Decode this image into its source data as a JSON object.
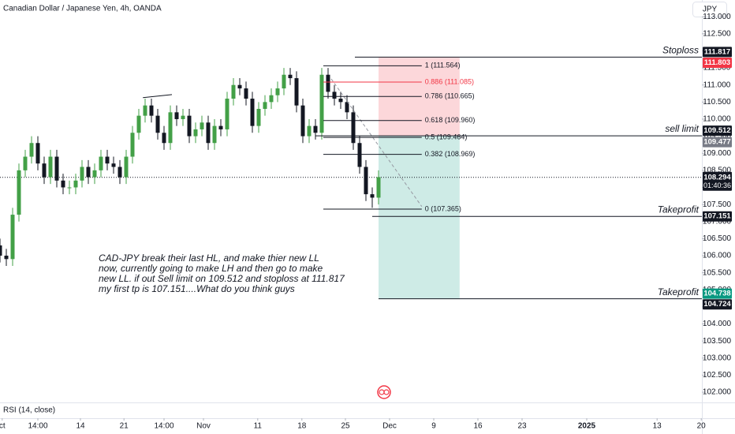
{
  "header": {
    "symbol": "Canadian Dollar / Japanese Yen, 4h, OANDA",
    "currency": "JPY"
  },
  "chart_data": {
    "type": "candlestick",
    "x": [
      0.25,
      1.25,
      2.25,
      3.25,
      4.25,
      5.25,
      6.25,
      7.25,
      8.25,
      9.25,
      10.25,
      11.25,
      12.25,
      13.25,
      14.25,
      15.25,
      16.25,
      17.25,
      18.25,
      19.25,
      20.25,
      21.25,
      22.25,
      23.25,
      24.25,
      25.25,
      26.25,
      27.25,
      28.25,
      29.25,
      30.25,
      31.25,
      32.25,
      33.25,
      34.25,
      35.25,
      36.25,
      37.25,
      38.25,
      39.25,
      40.25,
      41.25,
      42.25,
      43.25,
      44.25,
      45.25,
      46.25,
      47.25,
      48.25,
      49.25,
      50.25,
      51.25,
      52.25,
      53.25,
      54.25,
      55.25,
      56.25,
      57.25,
      58.25,
      59.25,
      60.25
    ],
    "open": [
      106.3,
      106.0,
      105.9,
      107.2,
      108.5,
      108.9,
      109.3,
      108.7,
      108.3,
      108.9,
      108.2,
      108.0,
      108.0,
      108.2,
      108.6,
      108.3,
      108.5,
      108.9,
      108.7,
      108.6,
      108.3,
      108.9,
      109.6,
      110.1,
      110.4,
      110.1,
      109.6,
      109.3,
      110.2,
      110.0,
      110.1,
      109.5,
      109.7,
      109.9,
      109.3,
      109.8,
      109.7,
      110.6,
      111.0,
      110.9,
      110.6,
      109.8,
      110.3,
      110.5,
      110.7,
      110.9,
      111.3,
      111.2,
      110.4,
      109.5,
      109.8,
      109.6,
      111.3,
      110.8,
      110.6,
      110.5,
      110.2,
      109.3,
      108.6,
      107.8,
      107.7
    ],
    "high": [
      106.5,
      106.2,
      107.4,
      108.7,
      109.1,
      109.5,
      109.5,
      108.9,
      109.1,
      109.1,
      108.4,
      108.2,
      108.4,
      108.8,
      108.8,
      108.7,
      109.1,
      109.1,
      108.9,
      108.8,
      109.1,
      109.8,
      110.3,
      110.6,
      110.6,
      110.3,
      109.8,
      110.4,
      110.4,
      110.3,
      110.3,
      109.9,
      110.1,
      110.1,
      110.0,
      110.0,
      110.8,
      111.2,
      111.2,
      111.1,
      110.8,
      110.5,
      110.7,
      110.9,
      111.1,
      111.5,
      111.5,
      111.4,
      110.6,
      110.0,
      110.0,
      111.5,
      111.5,
      111.0,
      110.8,
      110.7,
      110.4,
      109.5,
      108.8,
      108.0,
      108.5
    ],
    "low": [
      105.8,
      105.7,
      105.7,
      107.0,
      108.3,
      108.7,
      108.5,
      108.1,
      108.1,
      108.0,
      107.8,
      107.8,
      107.8,
      108.0,
      108.1,
      108.1,
      108.3,
      108.5,
      108.4,
      108.1,
      108.1,
      108.7,
      109.4,
      109.9,
      109.9,
      109.4,
      109.1,
      109.1,
      109.8,
      109.8,
      109.3,
      109.3,
      109.5,
      109.1,
      109.1,
      109.5,
      109.5,
      110.4,
      110.7,
      110.4,
      109.6,
      109.6,
      110.1,
      110.3,
      110.5,
      110.7,
      111.0,
      110.2,
      109.3,
      109.3,
      109.4,
      109.4,
      110.6,
      110.4,
      110.3,
      110.0,
      109.1,
      108.4,
      107.6,
      107.4,
      107.5
    ],
    "close": [
      106.0,
      105.9,
      107.2,
      108.5,
      108.9,
      109.3,
      108.7,
      108.3,
      108.9,
      108.2,
      108.0,
      108.0,
      108.2,
      108.6,
      108.3,
      108.5,
      108.9,
      108.7,
      108.6,
      108.3,
      108.9,
      109.6,
      110.1,
      110.4,
      110.1,
      109.6,
      109.3,
      110.2,
      110.0,
      110.1,
      109.5,
      109.7,
      109.9,
      109.3,
      109.8,
      109.7,
      110.6,
      111.0,
      110.9,
      110.6,
      109.8,
      110.3,
      110.5,
      110.7,
      110.9,
      111.3,
      111.2,
      110.4,
      109.5,
      109.8,
      109.6,
      111.3,
      110.8,
      110.6,
      110.5,
      110.2,
      109.3,
      108.6,
      107.8,
      107.7,
      108.3
    ],
    "up_color": "#43a047",
    "down_color": "#131722",
    "xlim": [
      0.25,
      111.5
    ],
    "xticks": [
      {
        "value": 0.6,
        "label": "ct"
      },
      {
        "value": 6.25,
        "label": "14:00"
      },
      {
        "value": 13,
        "label": "14"
      },
      {
        "value": 19.9,
        "label": "21"
      },
      {
        "value": 26.25,
        "label": "14:00"
      },
      {
        "value": 32.5,
        "label": "Nov"
      },
      {
        "value": 41.1,
        "label": "11"
      },
      {
        "value": 48.1,
        "label": "18"
      },
      {
        "value": 55,
        "label": "25"
      },
      {
        "value": 62,
        "label": "Dec"
      },
      {
        "value": 69,
        "label": "9"
      },
      {
        "value": 76,
        "label": "16"
      },
      {
        "value": 83,
        "label": "23"
      },
      {
        "value": 93.25,
        "label": "2025"
      },
      {
        "value": 104.4,
        "label": "13"
      },
      {
        "value": 111.4,
        "label": "20"
      }
    ],
    "ylim": [
      101.7,
      113.49
    ],
    "yticks": [
      {
        "value": 102,
        "label": "102.000"
      },
      {
        "value": 102.5,
        "label": "102.500"
      },
      {
        "value": 103,
        "label": "103.000"
      },
      {
        "value": 103.5,
        "label": "103.500"
      },
      {
        "value": 104,
        "label": "104.000"
      },
      {
        "value": 104.5,
        "label": "104.500"
      },
      {
        "value": 105,
        "label": "105.000"
      },
      {
        "value": 105.5,
        "label": "105.500"
      },
      {
        "value": 106,
        "label": "106.000"
      },
      {
        "value": 106.5,
        "label": "106.500"
      },
      {
        "value": 107,
        "label": "107.000"
      },
      {
        "value": 107.5,
        "label": "107.500"
      },
      {
        "value": 108,
        "label": "108.000"
      },
      {
        "value": 108.5,
        "label": "108.500"
      },
      {
        "value": 109,
        "label": "109.000"
      },
      {
        "value": 109.5,
        "label": "109.500"
      },
      {
        "value": 110,
        "label": "110.000"
      },
      {
        "value": 110.5,
        "label": "110.500"
      },
      {
        "value": 111,
        "label": "111.000"
      },
      {
        "value": 111.5,
        "label": "111.500"
      },
      {
        "value": 112,
        "label": "112.000"
      },
      {
        "value": 112.5,
        "label": "112.500"
      },
      {
        "value": 113,
        "label": "113.000"
      }
    ],
    "price_lines": [
      {
        "name": "Stoploss",
        "value": 111.817,
        "start": 56.5
      },
      {
        "name": "sell limit",
        "value": 109.512,
        "start": 50.25
      },
      {
        "name": "Takeprofit",
        "value": 107.151,
        "start": 59.25
      },
      {
        "name": "Takeprofit",
        "value": 104.738,
        "start": 60.25
      }
    ],
    "price_markers": [
      {
        "value": 111.817,
        "color": "#131722"
      },
      {
        "value": 111.803,
        "color": "#f23645"
      },
      {
        "value": 109.512,
        "color": "#131722"
      },
      {
        "value": 109.477,
        "color": "#787b86"
      },
      {
        "value": 107.151,
        "color": "#131722"
      },
      {
        "value": 104.738,
        "color": "#089981"
      },
      {
        "value": 104.724,
        "color": "#131722"
      }
    ],
    "last_price": 108.294,
    "countdown": "01:40:36",
    "fib": {
      "start": 51.5,
      "end": 67.1,
      "levels": [
        {
          "value": 111.564,
          "label": "1 (111.564)",
          "color": "#131722"
        },
        {
          "value": 111.085,
          "label": "0.886 (111.085)",
          "color": "#f23645"
        },
        {
          "value": 110.665,
          "label": "0.786 (110.665)",
          "color": "#131722"
        },
        {
          "value": 109.96,
          "label": "0.618 (109.960)",
          "color": "#131722"
        },
        {
          "value": 109.464,
          "label": "0.5 (109.464)",
          "color": "#131722"
        },
        {
          "value": 108.969,
          "label": "0.382 (108.969)",
          "color": "#131722"
        },
        {
          "value": 107.365,
          "label": "0 (107.365)",
          "color": "#131722"
        }
      ]
    },
    "position": {
      "start": 60.25,
      "end": 73.1,
      "entry": 109.512,
      "stop": 111.817,
      "target": 104.738
    },
    "drawings": [
      {
        "style": "dashed",
        "x": [
          52.75,
          67.1
        ],
        "y": [
          111.18,
          107.44
        ]
      },
      {
        "style": "solid",
        "x": [
          22.9,
          27.5
        ],
        "y": [
          110.63,
          110.72
        ]
      }
    ],
    "annotation": [
      "CAD-JPY break their last HL, and make thier new LL",
      "now, currently going to make LH and then go to make",
      "new LL. if out Sell limit on 109.512 and stoploss at 111.817",
      "my first tp is 107.151....What do you think guys"
    ],
    "indicator": "RSI (14, close)"
  }
}
